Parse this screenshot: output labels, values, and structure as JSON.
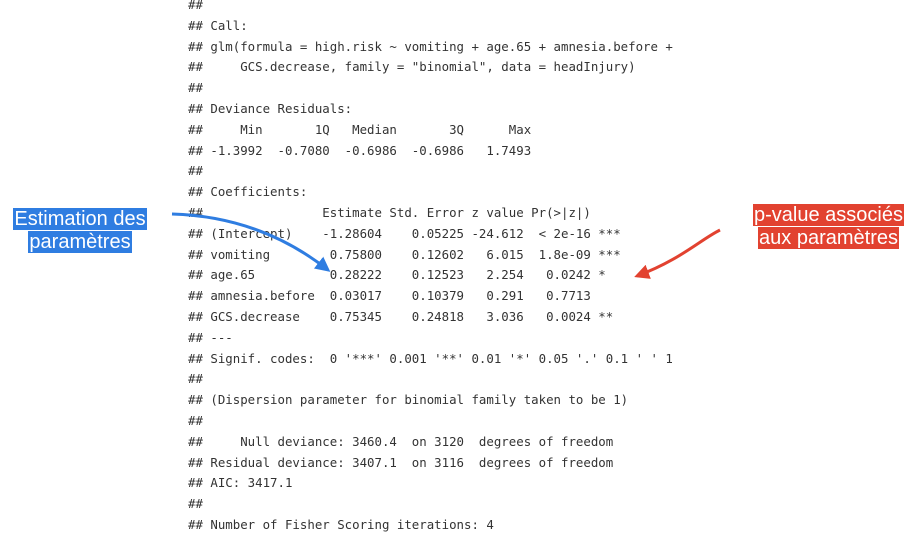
{
  "console": {
    "lines": [
      "##",
      "## Call:",
      "## glm(formula = high.risk ~ vomiting + age.65 + amnesia.before +",
      "##     GCS.decrease, family = \"binomial\", data = headInjury)",
      "##",
      "## Deviance Residuals:",
      "##     Min       1Q   Median       3Q      Max",
      "## -1.3992  -0.7080  -0.6986  -0.6986   1.7493",
      "##",
      "## Coefficients:",
      "##                Estimate Std. Error z value Pr(>|z|)",
      "## (Intercept)    -1.28604    0.05225 -24.612  < 2e-16 ***",
      "## vomiting        0.75800    0.12602   6.015  1.8e-09 ***",
      "## age.65          0.28222    0.12523   2.254   0.0242 *",
      "## amnesia.before  0.03017    0.10379   0.291   0.7713",
      "## GCS.decrease    0.75345    0.24818   3.036   0.0024 **",
      "## ---",
      "## Signif. codes:  0 '***' 0.001 '**' 0.01 '*' 0.05 '.' 0.1 ' ' 1",
      "##",
      "## (Dispersion parameter for binomial family taken to be 1)",
      "##",
      "##     Null deviance: 3460.4  on 3120  degrees of freedom",
      "## Residual deviance: 3407.1  on 3116  degrees of freedom",
      "## AIC: 3417.1",
      "##",
      "## Number of Fisher Scoring iterations: 4"
    ]
  },
  "annotations": {
    "left": {
      "line1": "Estimation des",
      "line2": "paramètres",
      "color": "#2f7de1"
    },
    "right": {
      "line1": "p-value associés",
      "line2": "aux paramètres",
      "color": "#e24230"
    }
  }
}
